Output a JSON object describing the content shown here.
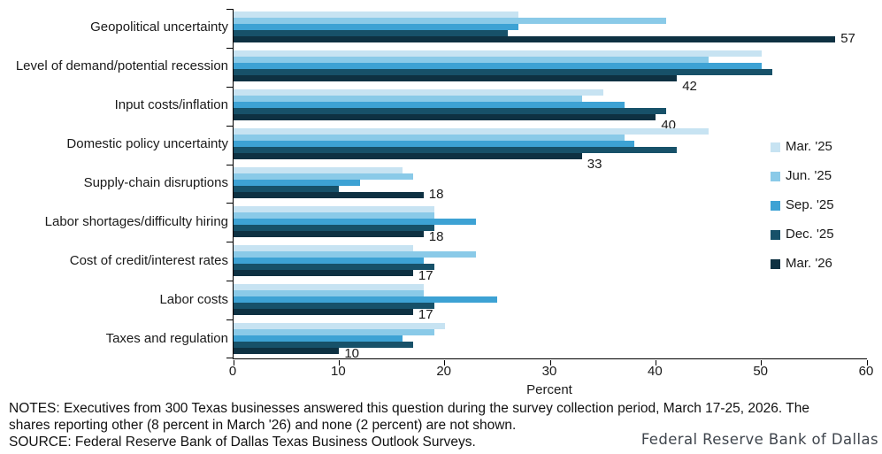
{
  "chart_data": {
    "type": "bar",
    "orientation": "horizontal",
    "title": "",
    "xlabel": "Percent",
    "xlim": [
      0,
      60
    ],
    "xticks": [
      0,
      10,
      20,
      30,
      40,
      50,
      60
    ],
    "grid": false,
    "legend_position": "right",
    "categories": [
      "Geopolitical uncertainty",
      "Level of demand/potential recession",
      "Input costs/inflation",
      "Domestic policy uncertainty",
      "Supply-chain disruptions",
      "Labor shortages/difficulty hiring",
      "Cost of credit/interest rates",
      "Labor costs",
      "Taxes and regulation"
    ],
    "series": [
      {
        "name": "Mar. '25",
        "color": "#c7e3f2",
        "values": [
          27,
          50,
          35,
          45,
          16,
          19,
          17,
          18,
          20
        ]
      },
      {
        "name": "Jun. '25",
        "color": "#8acae8",
        "values": [
          41,
          45,
          33,
          37,
          17,
          19,
          23,
          18,
          19
        ]
      },
      {
        "name": "Sep. '25",
        "color": "#3da2d4",
        "values": [
          27,
          50,
          37,
          38,
          12,
          23,
          18,
          25,
          16
        ]
      },
      {
        "name": "Dec. '25",
        "color": "#175169",
        "values": [
          26,
          51,
          41,
          42,
          10,
          19,
          19,
          19,
          17
        ]
      },
      {
        "name": "Mar. '26",
        "color": "#0e3142",
        "values": [
          57,
          42,
          40,
          33,
          18,
          18,
          17,
          17,
          10
        ],
        "show_data_labels": true
      }
    ],
    "data_labels_series": "Mar. '26",
    "data_labels": [
      57,
      42,
      40,
      33,
      18,
      18,
      17,
      17,
      10
    ]
  },
  "footer": {
    "notes_line1": "NOTES: Executives from 300 Texas businesses answered this question during the survey collection period, March 17-25, 2026. The",
    "notes_line2": "shares reporting other (8 percent in March '26) and none (2 percent) are not shown.",
    "source_line": "SOURCE: Federal Reserve Bank of Dallas Texas Business Outlook Surveys.",
    "branding": "Federal Reserve Bank of Dallas"
  }
}
